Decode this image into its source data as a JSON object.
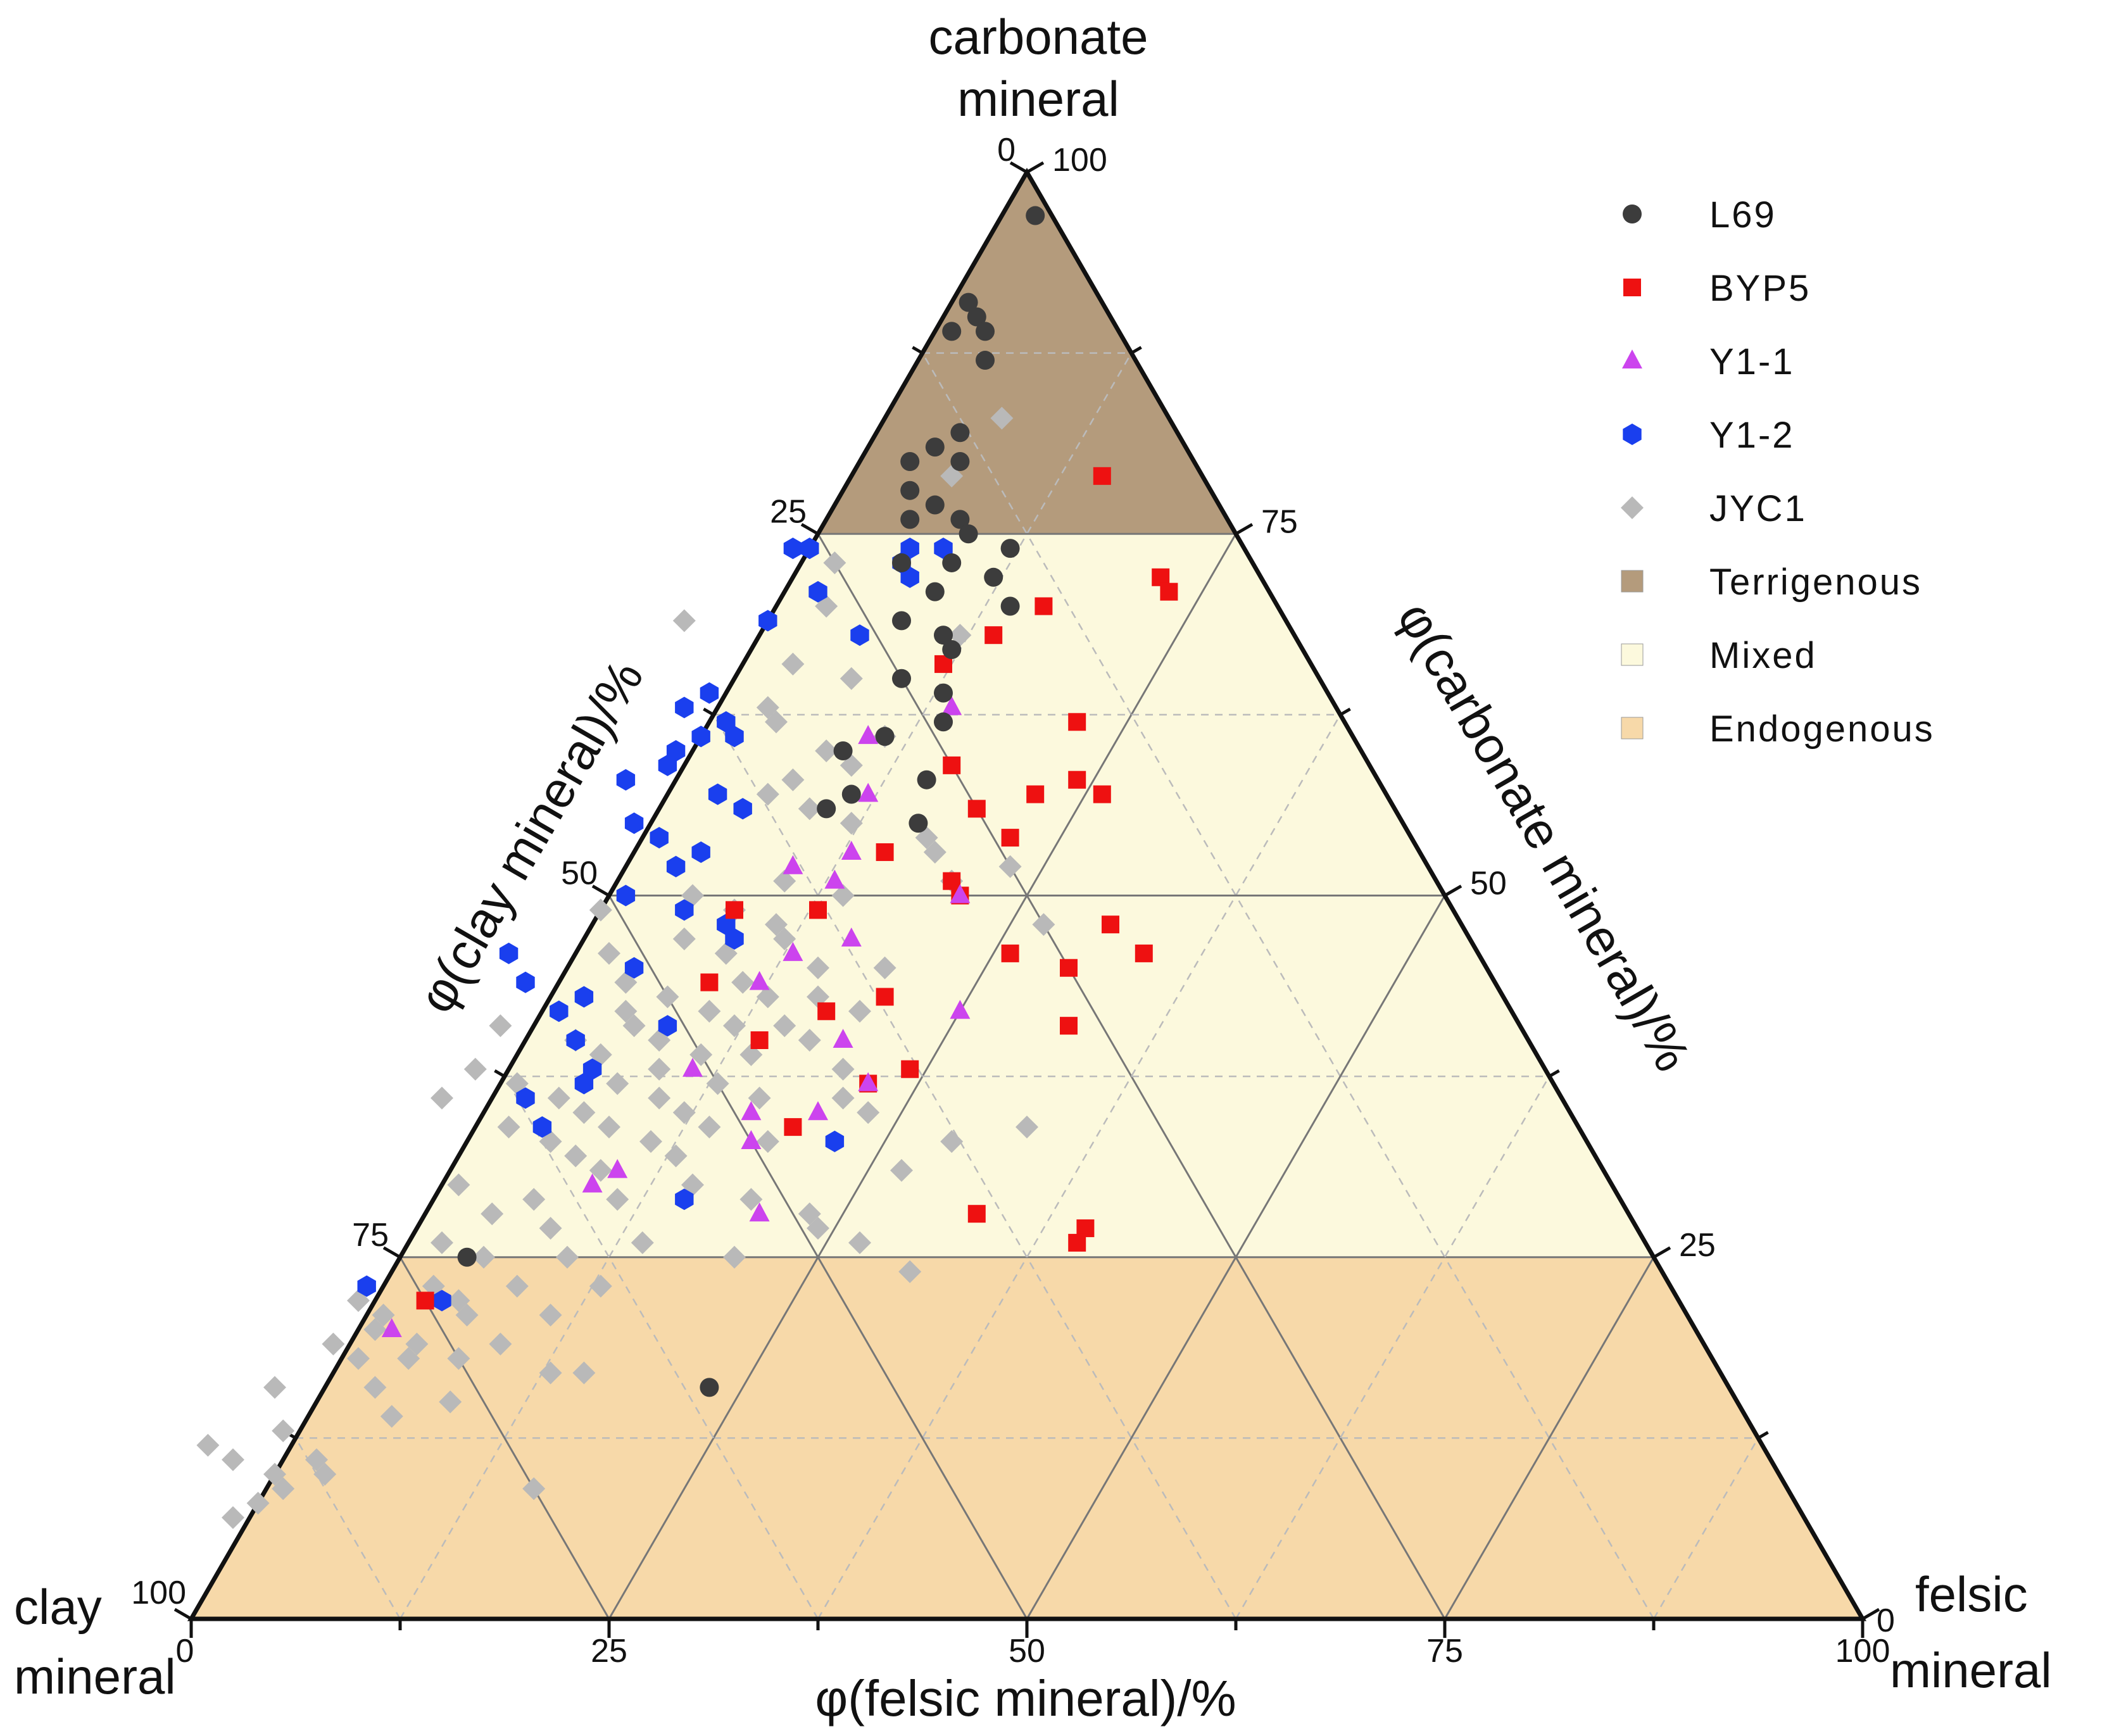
{
  "chart_data": {
    "type": "ternary-scatter",
    "corners": {
      "top": [
        "carbonate",
        "mineral"
      ],
      "left": [
        "clay",
        "mineral"
      ],
      "right": [
        "felsic",
        "mineral"
      ]
    },
    "axis_titles": {
      "left": "φ(clay mineral)/%",
      "right": "φ(carbonate mineral)/%",
      "bottom": "φ(felsic mineral)/%"
    },
    "ticks": {
      "clay": [
        "0",
        "25",
        "50",
        "75",
        "100"
      ],
      "carbonate": [
        "100",
        "75",
        "50",
        "25",
        "0"
      ],
      "felsic": [
        "0",
        "25",
        "50",
        "75",
        "100"
      ]
    },
    "regions": [
      {
        "name": "Terrigenous",
        "carbonate_min": 75,
        "carbonate_max": 100,
        "color": "#b49b7c"
      },
      {
        "name": "Mixed",
        "carbonate_min": 25,
        "carbonate_max": 75,
        "color": "#fcf9dd"
      },
      {
        "name": "Endogenous",
        "carbonate_min": 0,
        "carbonate_max": 25,
        "color": "#f7d9a9"
      }
    ],
    "legend": {
      "placement": "top-right",
      "entries": [
        {
          "label": "L69",
          "marker": "circle",
          "color": "#3c3c3c"
        },
        {
          "label": "BYP5",
          "marker": "square",
          "color": "#ee1111"
        },
        {
          "label": "Y1-1",
          "marker": "triangle",
          "color": "#cc44ee"
        },
        {
          "label": "Y1-2",
          "marker": "hexagon",
          "color": "#1a3fee"
        },
        {
          "label": "JYC1",
          "marker": "diamond",
          "color": "#b9b9b9"
        },
        {
          "label": "Terrigenous",
          "marker": "box",
          "color": "#b49b7c"
        },
        {
          "label": "Mixed",
          "marker": "box",
          "color": "#fcf9dd"
        },
        {
          "label": "Endogenous",
          "marker": "box",
          "color": "#f7d9a9"
        }
      ]
    },
    "point_format": "[carbonate %, felsic %]",
    "series": [
      {
        "name": "L69",
        "points": [
          [
            97,
            2
          ],
          [
            91,
            1
          ],
          [
            90,
            2
          ],
          [
            89,
            3
          ],
          [
            89,
            1
          ],
          [
            87,
            4
          ],
          [
            82,
            5
          ],
          [
            81,
            4
          ],
          [
            80,
            3
          ],
          [
            80,
            6
          ],
          [
            78,
            4
          ],
          [
            77,
            6
          ],
          [
            76,
            5
          ],
          [
            76,
            8
          ],
          [
            75,
            9
          ],
          [
            74,
            12
          ],
          [
            73,
            9
          ],
          [
            73,
            6
          ],
          [
            72,
            12
          ],
          [
            71,
            9
          ],
          [
            70,
            14
          ],
          [
            69,
            8
          ],
          [
            68,
            11
          ],
          [
            67,
            12
          ],
          [
            65,
            10
          ],
          [
            64,
            13
          ],
          [
            62,
            14
          ],
          [
            61,
            11
          ],
          [
            60,
            9
          ],
          [
            58,
            15
          ],
          [
            57,
            11
          ],
          [
            56,
            10
          ],
          [
            55,
            16
          ],
          [
            25,
            4
          ],
          [
            16,
            23
          ]
        ]
      },
      {
        "name": "BYP5",
        "points": [
          [
            79,
            15
          ],
          [
            72,
            22
          ],
          [
            71,
            23
          ],
          [
            70,
            16
          ],
          [
            68,
            14
          ],
          [
            66,
            12
          ],
          [
            62,
            22
          ],
          [
            59,
            16
          ],
          [
            58,
            24
          ],
          [
            57,
            26
          ],
          [
            57,
            22
          ],
          [
            56,
            19
          ],
          [
            54,
            22
          ],
          [
            53,
            15
          ],
          [
            51,
            20
          ],
          [
            50,
            21
          ],
          [
            49,
            13
          ],
          [
            49,
            8
          ],
          [
            48,
            31
          ],
          [
            46,
            26
          ],
          [
            46,
            34
          ],
          [
            45,
            30
          ],
          [
            44,
            9
          ],
          [
            43,
            20
          ],
          [
            42,
            17
          ],
          [
            41,
            32
          ],
          [
            40,
            14
          ],
          [
            38,
            24
          ],
          [
            37,
            22
          ],
          [
            34,
            19
          ],
          [
            28,
            33
          ],
          [
            27,
            40
          ],
          [
            26,
            40
          ],
          [
            22,
            3
          ]
        ]
      },
      {
        "name": "Y1-1",
        "points": [
          [
            63,
            14
          ],
          [
            61,
            10
          ],
          [
            57,
            12
          ],
          [
            53,
            13
          ],
          [
            52,
            10
          ],
          [
            51,
            13
          ],
          [
            50,
            21
          ],
          [
            47,
            16
          ],
          [
            46,
            13
          ],
          [
            44,
            12
          ],
          [
            42,
            25
          ],
          [
            40,
            19
          ],
          [
            38,
            11
          ],
          [
            37,
            22
          ],
          [
            35,
            20
          ],
          [
            35,
            16
          ],
          [
            33,
            17
          ],
          [
            31,
            10
          ],
          [
            30,
            9
          ],
          [
            28,
            20
          ],
          [
            20,
            2
          ]
        ]
      },
      {
        "name": "Y1-2",
        "points": [
          [
            74,
            6
          ],
          [
            74,
            -1
          ],
          [
            74,
            0
          ],
          [
            74,
            8
          ],
          [
            73,
            6
          ],
          [
            72,
            7
          ],
          [
            71,
            2
          ],
          [
            69,
            0
          ],
          [
            68,
            6
          ],
          [
            64,
            -1
          ],
          [
            63,
            -2
          ],
          [
            62,
            1
          ],
          [
            61,
            0
          ],
          [
            61,
            2
          ],
          [
            60,
            -1
          ],
          [
            59,
            -1
          ],
          [
            58,
            -3
          ],
          [
            57,
            3
          ],
          [
            56,
            5
          ],
          [
            55,
            -1
          ],
          [
            54,
            1
          ],
          [
            53,
            4
          ],
          [
            52,
            3
          ],
          [
            50,
            1
          ],
          [
            49,
            5
          ],
          [
            48,
            8
          ],
          [
            47,
            9
          ],
          [
            46,
            -4
          ],
          [
            45,
            4
          ],
          [
            44,
            -2
          ],
          [
            43,
            2
          ],
          [
            42,
            1
          ],
          [
            41,
            8
          ],
          [
            40,
            3
          ],
          [
            38,
            5
          ],
          [
            37,
            5
          ],
          [
            36,
            2
          ],
          [
            34,
            4
          ],
          [
            33,
            22
          ],
          [
            29,
            15
          ],
          [
            23,
            -1
          ],
          [
            22,
            4
          ]
        ]
      },
      {
        "name": "JYC1",
        "points": [
          [
            83,
            7
          ],
          [
            79,
            6
          ],
          [
            73,
            2
          ],
          [
            70,
            3
          ],
          [
            69,
            -5
          ],
          [
            68,
            12
          ],
          [
            66,
            3
          ],
          [
            65,
            7
          ],
          [
            63,
            3
          ],
          [
            62,
            4
          ],
          [
            61,
            11
          ],
          [
            60,
            8
          ],
          [
            59,
            10
          ],
          [
            58,
            7
          ],
          [
            57,
            6
          ],
          [
            56,
            9
          ],
          [
            55,
            12
          ],
          [
            54,
            17
          ],
          [
            53,
            18
          ],
          [
            52,
            23
          ],
          [
            51,
            20
          ],
          [
            51,
            10
          ],
          [
            50,
            14
          ],
          [
            50,
            5
          ],
          [
            49,
            0
          ],
          [
            49,
            8
          ],
          [
            48,
            11
          ],
          [
            48,
            27
          ],
          [
            47,
            6
          ],
          [
            47,
            12
          ],
          [
            46,
            9
          ],
          [
            46,
            2
          ],
          [
            45,
            15
          ],
          [
            45,
            19
          ],
          [
            44,
            4
          ],
          [
            44,
            11
          ],
          [
            43,
            7
          ],
          [
            43,
            13
          ],
          [
            43,
            16
          ],
          [
            42,
            5
          ],
          [
            42,
            10
          ],
          [
            42,
            19
          ],
          [
            41,
            -2
          ],
          [
            41,
            6
          ],
          [
            41,
            12
          ],
          [
            41,
            15
          ],
          [
            40,
            8
          ],
          [
            40,
            3
          ],
          [
            40,
            17
          ],
          [
            39,
            11
          ],
          [
            39,
            5
          ],
          [
            39,
            14
          ],
          [
            38,
            -2
          ],
          [
            38,
            9
          ],
          [
            38,
            20
          ],
          [
            37,
            1
          ],
          [
            37,
            7
          ],
          [
            37,
            13
          ],
          [
            36,
            -3
          ],
          [
            36,
            4
          ],
          [
            36,
            10
          ],
          [
            36,
            16
          ],
          [
            36,
            21
          ],
          [
            35,
            6
          ],
          [
            35,
            12
          ],
          [
            35,
            23
          ],
          [
            34,
            2
          ],
          [
            34,
            8
          ],
          [
            34,
            14
          ],
          [
            34,
            33
          ],
          [
            33,
            5
          ],
          [
            33,
            11
          ],
          [
            33,
            18
          ],
          [
            33,
            29
          ],
          [
            32,
            7
          ],
          [
            32,
            13
          ],
          [
            31,
            9
          ],
          [
            31,
            27
          ],
          [
            30,
            1
          ],
          [
            30,
            15
          ],
          [
            29,
            6
          ],
          [
            29,
            11
          ],
          [
            29,
            19
          ],
          [
            28,
            4
          ],
          [
            28,
            23
          ],
          [
            27,
            8
          ],
          [
            27,
            24
          ],
          [
            26,
            2
          ],
          [
            26,
            14
          ],
          [
            26,
            27
          ],
          [
            25,
            5
          ],
          [
            25,
            10
          ],
          [
            25,
            20
          ],
          [
            24,
            31
          ],
          [
            23,
            3
          ],
          [
            23,
            8
          ],
          [
            23,
            13
          ],
          [
            22,
            -1
          ],
          [
            22,
            5
          ],
          [
            21,
            1
          ],
          [
            21,
            6
          ],
          [
            21,
            11
          ],
          [
            20,
            1
          ],
          [
            19,
            -1
          ],
          [
            19,
            4
          ],
          [
            19,
            9
          ],
          [
            18,
            1
          ],
          [
            18,
            4
          ],
          [
            18,
            7
          ],
          [
            17,
            13
          ],
          [
            17,
            15
          ],
          [
            16,
            -3
          ],
          [
            16,
            3
          ],
          [
            15,
            8
          ],
          [
            14,
            5
          ],
          [
            13,
            -1
          ],
          [
            12,
            -5
          ],
          [
            11,
            -3
          ],
          [
            11,
            2
          ],
          [
            10,
            0
          ],
          [
            10,
            3
          ],
          [
            9,
            1
          ],
          [
            9,
            16
          ],
          [
            8,
            0
          ],
          [
            7,
            -1
          ]
        ]
      }
    ]
  }
}
